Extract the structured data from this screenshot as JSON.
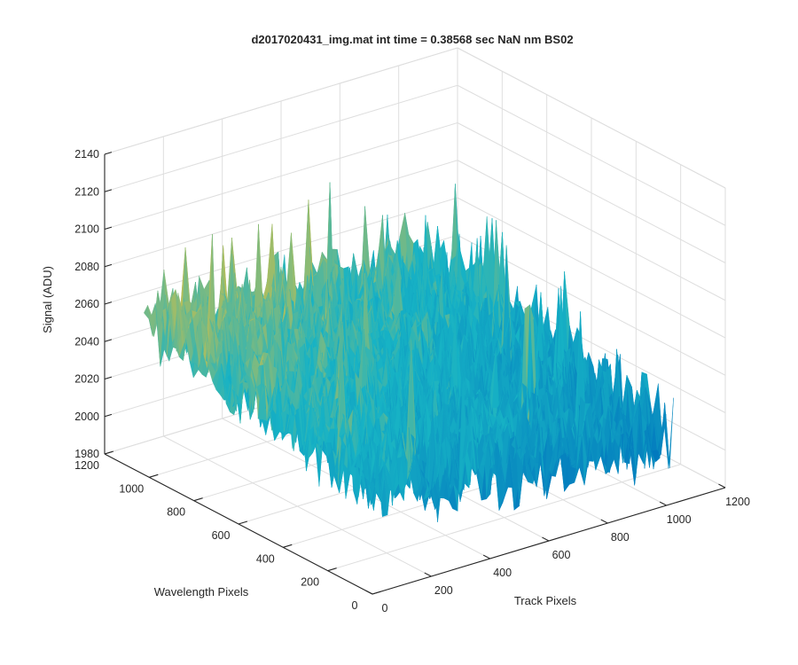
{
  "chart_data": {
    "type": "surface",
    "title": "d2017020431_img.mat int time = 0.38568 sec  NaN nm BS02",
    "xlabel": "Track Pixels",
    "ylabel": "Wavelength Pixels",
    "zlabel": "Signal (ADU)",
    "xlim": [
      0,
      1200
    ],
    "ylim": [
      0,
      1200
    ],
    "zlim": [
      1980,
      2140
    ],
    "xticks": [
      "0",
      "200",
      "400",
      "600",
      "800",
      "1000",
      "1200"
    ],
    "yticks": [
      "0",
      "200",
      "400",
      "600",
      "800",
      "1000",
      "1200"
    ],
    "zticks": [
      "1980",
      "2000",
      "2020",
      "2040",
      "2060",
      "2080",
      "2100",
      "2120",
      "2140"
    ],
    "grid": true,
    "colormap": "parula",
    "colors": {
      "low": "#0072bd",
      "mid": "#17b3c5",
      "high": "#f2c230"
    },
    "surface_extent": {
      "x": [
        0,
        1024
      ],
      "y": [
        0,
        1024
      ]
    },
    "surface_level": {
      "mean_at_high_wavelength_low_track": 2065,
      "mean_at_low_wavelength_high_track": 2015,
      "noise_peak_to_peak": 60,
      "max_spike": 2125,
      "min_spike": 1985
    }
  }
}
